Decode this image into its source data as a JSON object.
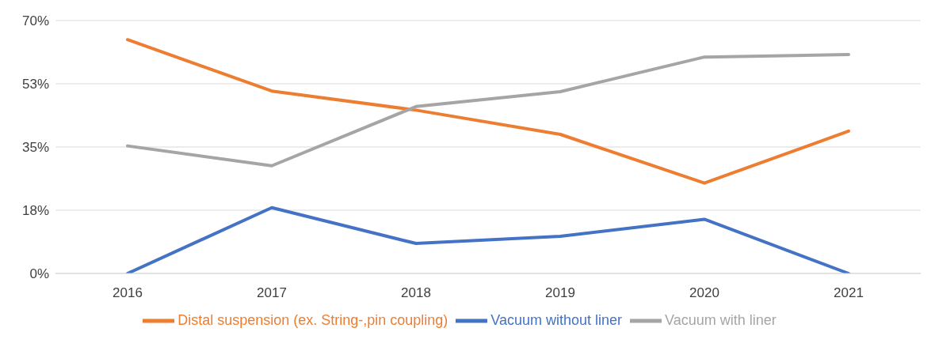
{
  "chart_data": {
    "type": "line",
    "categories": [
      "2016",
      "2017",
      "2018",
      "2019",
      "2020",
      "2021"
    ],
    "series": [
      {
        "name": "Distal suspension (ex. String-,pin coupling)",
        "color": "#ed7d31",
        "values": [
          64.7,
          50.5,
          45.2,
          38.5,
          25.0,
          39.4
        ]
      },
      {
        "name": "Vacuum without liner",
        "color": "#4472c4",
        "values": [
          0,
          18.2,
          8.3,
          10.3,
          15.0,
          0
        ]
      },
      {
        "name": "Vacuum with liner",
        "color": "#a5a5a5",
        "values": [
          35.3,
          29.8,
          46.2,
          50.3,
          59.9,
          60.6
        ]
      }
    ],
    "ylim": [
      0,
      70
    ],
    "yticks": [
      {
        "value": 0,
        "label": "0%"
      },
      {
        "value": 17.5,
        "label": "18%"
      },
      {
        "value": 35,
        "label": "35%"
      },
      {
        "value": 52.5,
        "label": "53%"
      },
      {
        "value": 70,
        "label": "70%"
      }
    ],
    "grid": "y",
    "legend": "bottom",
    "marker": "none",
    "line_style": "solid"
  }
}
